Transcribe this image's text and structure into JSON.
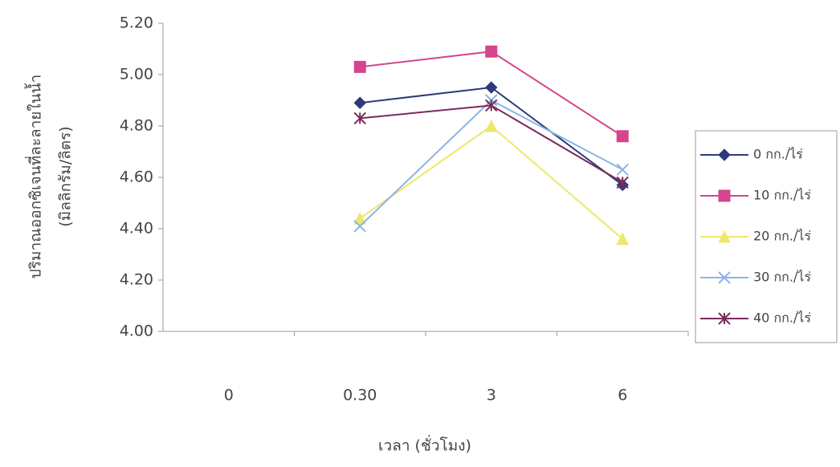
{
  "chart_data": {
    "type": "line",
    "y_label": [
      "ปริมาณออกซิเจนที่ละลายในน้ำ",
      "(มิลลิกรัม/ลิตร)"
    ],
    "x_label": "เวลา (ชั่วโมง)",
    "categories": [
      "0",
      "0.30",
      "3",
      "6"
    ],
    "ylim": [
      4.0,
      5.2
    ],
    "yticks": [
      {
        "value": 4.0,
        "label": "4.00"
      },
      {
        "value": 4.2,
        "label": "4.20"
      },
      {
        "value": 4.4,
        "label": "4.40"
      },
      {
        "value": 4.6,
        "label": "4.60"
      },
      {
        "value": 4.8,
        "label": "4.80"
      },
      {
        "value": 5.0,
        "label": "5.00"
      },
      {
        "value": 5.2,
        "label": "5.20"
      }
    ],
    "legend": "right",
    "series": [
      {
        "name": "0 กก./ไร่",
        "color": "#2e3a7a",
        "marker": "diamond",
        "values": [
          null,
          4.89,
          4.95,
          4.57
        ]
      },
      {
        "name": "10 กก./ไร่",
        "color": "#d4458c",
        "marker": "square",
        "values": [
          null,
          5.03,
          5.09,
          4.76
        ]
      },
      {
        "name": "20 กก./ไร่",
        "color": "#ece86a",
        "marker": "triangle",
        "values": [
          null,
          4.44,
          4.8,
          4.36
        ]
      },
      {
        "name": "30 กก./ไร่",
        "color": "#8ab4e8",
        "marker": "x",
        "values": [
          null,
          4.41,
          4.9,
          4.63
        ]
      },
      {
        "name": "40 กก./ไร่",
        "color": "#7a2a5a",
        "marker": "star",
        "values": [
          null,
          4.83,
          4.88,
          4.58
        ]
      }
    ]
  }
}
